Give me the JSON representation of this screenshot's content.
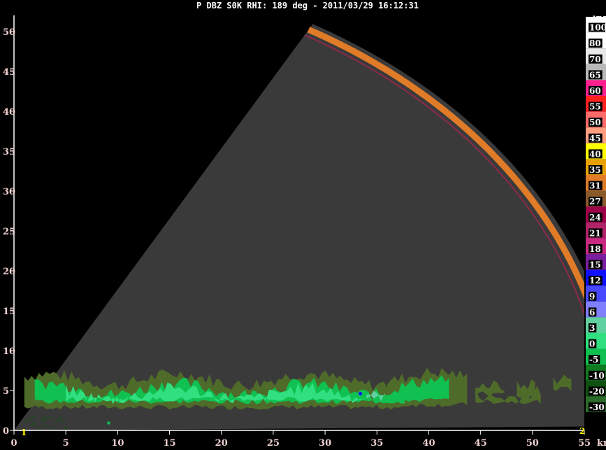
{
  "title": "P DBZ S0K  RHI: 189 deg  -  2011/03/29 16:12:31",
  "corner_labels": {
    "left": "1",
    "right": "2"
  },
  "chart_data": {
    "type": "heatmap",
    "title": "P DBZ S0K  RHI: 189 deg  -  2011/03/29 16:12:31",
    "xlabel": "km",
    "ylabel": "",
    "xlim": [
      0,
      55
    ],
    "ylim": [
      0,
      52
    ],
    "x_ticks": [
      "0",
      "5",
      "10",
      "15",
      "20",
      "25",
      "30",
      "35",
      "40",
      "45",
      "50",
      "55"
    ],
    "y_ticks": [
      "0",
      "5",
      "10",
      "15",
      "20",
      "25",
      "30",
      "35",
      "40",
      "45",
      "50"
    ],
    "x_tick_values": [
      0,
      5,
      10,
      15,
      20,
      25,
      30,
      35,
      40,
      45,
      50,
      55
    ],
    "y_tick_values": [
      0,
      5,
      10,
      15,
      20,
      25,
      30,
      35,
      40,
      45,
      50
    ],
    "units_label": "dBZ",
    "scan": {
      "max_range_km": 58.5,
      "min_elevation_deg": 0.5,
      "max_elevation_deg": 60.5
    },
    "echo_layer": {
      "x_start_km": 1,
      "x_end_km": 52,
      "base_km": 3.0,
      "top_km": 7.5,
      "dominant_dbz": [
        -5,
        0,
        6
      ]
    },
    "color_scale": [
      {
        "label": "100",
        "color": "#ffffff"
      },
      {
        "label": "80",
        "color": "#ffffff"
      },
      {
        "label": "70",
        "color": "#e8e8e8"
      },
      {
        "label": "65",
        "color": "#b8b8b8"
      },
      {
        "label": "60",
        "color": "#ff1f8f"
      },
      {
        "label": "55",
        "color": "#ff2020"
      },
      {
        "label": "50",
        "color": "#ff6a6a"
      },
      {
        "label": "45",
        "color": "#ff9f80"
      },
      {
        "label": "40",
        "color": "#ffff00"
      },
      {
        "label": "35",
        "color": "#e6a000"
      },
      {
        "label": "31",
        "color": "#e07b28"
      },
      {
        "label": "27",
        "color": "#8b5a2b"
      },
      {
        "label": "24",
        "color": "#a0004a"
      },
      {
        "label": "21",
        "color": "#b0246a"
      },
      {
        "label": "18",
        "color": "#c82a82"
      },
      {
        "label": "15",
        "color": "#7a1fa0"
      },
      {
        "label": "12",
        "color": "#1010ff"
      },
      {
        "label": "9",
        "color": "#4848ff"
      },
      {
        "label": "6",
        "color": "#8080ff"
      },
      {
        "label": "3",
        "color": "#60d0a0"
      },
      {
        "label": "0",
        "color": "#30e080"
      },
      {
        "label": "-5",
        "color": "#10c050"
      },
      {
        "label": "-10",
        "color": "#0f7a1f"
      },
      {
        "label": "-20",
        "color": "#105010"
      },
      {
        "label": "-30",
        "color": "#2a6a2a"
      }
    ]
  },
  "colors": {
    "background": "#000000",
    "cone": "#3a3a3a",
    "outer_band": "#e07b28",
    "outer_band_inner": "#8b2a4a",
    "axis": "#ffffff",
    "tick_text": "#f0d0d0"
  }
}
